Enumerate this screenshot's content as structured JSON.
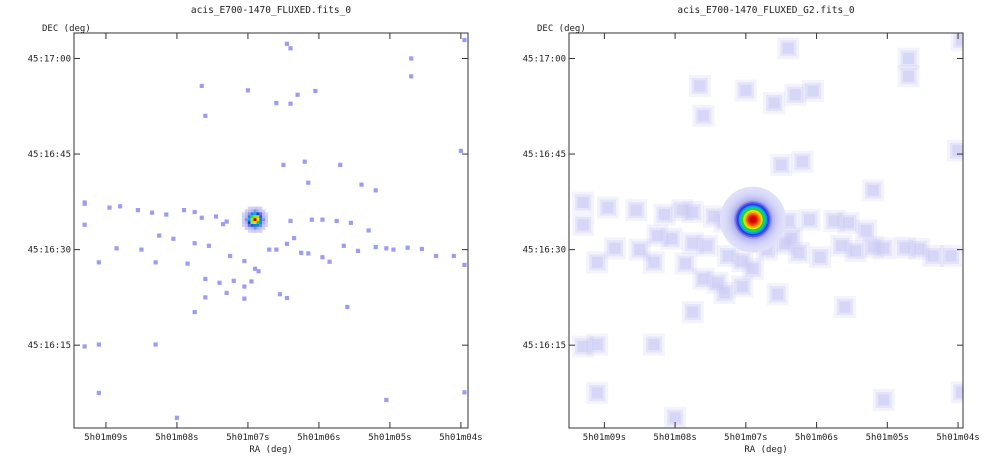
{
  "chart_data": [
    {
      "type": "heatmap",
      "title": "acis_E700-1470_FLUXED.fits_0",
      "xlabel": "RA (deg)",
      "ylabel": "DEC (deg)",
      "x_ticks": [
        "5h01m09s",
        "5h01m08s",
        "5h01m07s",
        "5h01m06s",
        "5h01m05s",
        "5h01m04s"
      ],
      "y_ticks": [
        "45:17:00",
        "45:16:45",
        "45:16:30",
        "45:16:15"
      ],
      "x_tick_values_sec": [
        9,
        8,
        7,
        6,
        5,
        4
      ],
      "y_tick_values_arcsec": [
        1020,
        1005,
        990,
        975
      ],
      "xlim_sec": [
        9.45,
        3.9
      ],
      "ylim_arcsec": [
        1024,
        962
      ],
      "grid": false,
      "colormap": "rainbow",
      "source_center": {
        "ra_sec": 6.9,
        "dec_arcsec": 994.7
      },
      "smoothing": "none",
      "events": [
        [
          9.3,
          997.4
        ],
        [
          9.3,
          997.2
        ],
        [
          8.95,
          996.6
        ],
        [
          8.8,
          996.8
        ],
        [
          8.55,
          996.2
        ],
        [
          8.35,
          995.8
        ],
        [
          8.15,
          995.5
        ],
        [
          7.9,
          996.2
        ],
        [
          7.75,
          995.9
        ],
        [
          7.65,
          995.0
        ],
        [
          7.45,
          995.2
        ],
        [
          7.3,
          994.4
        ],
        [
          7.35,
          994.0
        ],
        [
          6.4,
          994.5
        ],
        [
          6.1,
          994.7
        ],
        [
          5.95,
          994.7
        ],
        [
          5.75,
          994.5
        ],
        [
          5.55,
          994.2
        ],
        [
          5.3,
          993.0
        ],
        [
          5.05,
          990.2
        ],
        [
          4.95,
          990.0
        ],
        [
          4.75,
          990.3
        ],
        [
          4.55,
          990.1
        ],
        [
          4.35,
          989.0
        ],
        [
          4.1,
          989.0
        ],
        [
          3.95,
          987.6
        ],
        [
          9.3,
          993.9
        ],
        [
          8.85,
          990.2
        ],
        [
          8.5,
          990.0
        ],
        [
          8.25,
          992.2
        ],
        [
          8.05,
          991.7
        ],
        [
          7.75,
          991.0
        ],
        [
          7.55,
          990.6
        ],
        [
          7.25,
          989.0
        ],
        [
          7.05,
          988.2
        ],
        [
          6.9,
          987.0
        ],
        [
          6.85,
          986.6
        ],
        [
          6.7,
          990.0
        ],
        [
          6.6,
          990.0
        ],
        [
          6.45,
          990.9
        ],
        [
          6.35,
          991.8
        ],
        [
          6.25,
          989.5
        ],
        [
          6.15,
          989.4
        ],
        [
          5.95,
          988.8
        ],
        [
          5.85,
          988.1
        ],
        [
          5.65,
          990.6
        ],
        [
          5.45,
          989.8
        ],
        [
          5.2,
          990.4
        ],
        [
          9.1,
          988.0
        ],
        [
          8.3,
          988.0
        ],
        [
          7.85,
          987.8
        ],
        [
          7.6,
          985.4
        ],
        [
          7.4,
          984.8
        ],
        [
          7.2,
          985.1
        ],
        [
          7.05,
          984.2
        ],
        [
          6.95,
          985.0
        ],
        [
          6.55,
          983.0
        ],
        [
          6.45,
          982.4
        ],
        [
          5.6,
          981.0
        ],
        [
          7.6,
          982.5
        ],
        [
          7.75,
          980.2
        ],
        [
          7.05,
          982.3
        ],
        [
          7.3,
          983.2
        ],
        [
          8.3,
          975.1
        ],
        [
          9.1,
          967.5
        ],
        [
          8.0,
          963.6
        ],
        [
          5.05,
          966.4
        ],
        [
          3.95,
          967.6
        ],
        [
          6.45,
          1022.3
        ],
        [
          6.4,
          1021.6
        ],
        [
          3.95,
          1022.9
        ],
        [
          4.7,
          1020.0
        ],
        [
          7.0,
          1015.0
        ],
        [
          4.7,
          1017.2
        ],
        [
          7.65,
          1015.7
        ],
        [
          6.3,
          1014.3
        ],
        [
          6.05,
          1014.9
        ],
        [
          6.6,
          1013.0
        ],
        [
          6.4,
          1012.9
        ],
        [
          7.6,
          1011.0
        ],
        [
          4.0,
          1005.5
        ],
        [
          5.2,
          999.3
        ],
        [
          6.5,
          1003.3
        ],
        [
          6.2,
          1003.8
        ],
        [
          5.4,
          1000.2
        ],
        [
          6.15,
          1000.5
        ],
        [
          5.7,
          1003.3
        ],
        [
          9.1,
          975.1
        ],
        [
          9.3,
          974.8
        ]
      ]
    },
    {
      "type": "heatmap",
      "title": "acis_E700-1470_FLUXED_G2.fits_0",
      "xlabel": "RA (deg)",
      "ylabel": "DEC (deg)",
      "x_ticks": [
        "5h01m09s",
        "5h01m08s",
        "5h01m07s",
        "5h01m06s",
        "5h01m05s",
        "5h01m04s"
      ],
      "y_ticks": [
        "45:17:00",
        "45:16:45",
        "45:16:30",
        "45:16:15"
      ],
      "x_tick_values_sec": [
        9,
        8,
        7,
        6,
        5,
        4
      ],
      "y_tick_values_arcsec": [
        1020,
        1005,
        990,
        975
      ],
      "xlim_sec": [
        9.5,
        3.93
      ],
      "ylim_arcsec": [
        1024,
        962
      ],
      "grid": false,
      "colormap": "rainbow",
      "source_center": {
        "ra_sec": 6.9,
        "dec_arcsec": 994.7
      },
      "smoothing": "gaussian",
      "events": [
        [
          9.3,
          997.4
        ],
        [
          8.95,
          996.6
        ],
        [
          8.55,
          996.2
        ],
        [
          8.15,
          995.5
        ],
        [
          7.9,
          996.2
        ],
        [
          7.75,
          995.9
        ],
        [
          7.45,
          995.2
        ],
        [
          7.3,
          994.4
        ],
        [
          6.4,
          994.5
        ],
        [
          6.1,
          994.7
        ],
        [
          5.75,
          994.5
        ],
        [
          5.55,
          994.2
        ],
        [
          5.3,
          993.0
        ],
        [
          5.05,
          990.2
        ],
        [
          4.75,
          990.3
        ],
        [
          4.55,
          990.1
        ],
        [
          4.35,
          989.0
        ],
        [
          4.1,
          989.0
        ],
        [
          9.3,
          993.9
        ],
        [
          8.85,
          990.2
        ],
        [
          8.5,
          990.0
        ],
        [
          8.25,
          992.2
        ],
        [
          8.05,
          991.7
        ],
        [
          7.75,
          991.0
        ],
        [
          7.55,
          990.6
        ],
        [
          7.25,
          989.0
        ],
        [
          7.05,
          988.2
        ],
        [
          6.9,
          987.0
        ],
        [
          6.7,
          990.0
        ],
        [
          6.45,
          990.9
        ],
        [
          6.35,
          991.8
        ],
        [
          6.25,
          989.5
        ],
        [
          5.95,
          988.8
        ],
        [
          5.65,
          990.6
        ],
        [
          5.45,
          989.8
        ],
        [
          5.2,
          990.4
        ],
        [
          9.1,
          988.0
        ],
        [
          8.3,
          988.0
        ],
        [
          7.85,
          987.8
        ],
        [
          7.6,
          985.4
        ],
        [
          7.4,
          984.8
        ],
        [
          7.05,
          984.2
        ],
        [
          6.55,
          983.0
        ],
        [
          5.6,
          981.0
        ],
        [
          7.75,
          980.2
        ],
        [
          7.3,
          983.2
        ],
        [
          8.3,
          975.1
        ],
        [
          9.1,
          967.5
        ],
        [
          8.0,
          963.6
        ],
        [
          5.05,
          966.4
        ],
        [
          3.95,
          967.6
        ],
        [
          6.4,
          1021.6
        ],
        [
          3.95,
          1022.9
        ],
        [
          4.7,
          1020.0
        ],
        [
          7.0,
          1015.0
        ],
        [
          4.7,
          1017.2
        ],
        [
          7.65,
          1015.7
        ],
        [
          6.3,
          1014.3
        ],
        [
          6.05,
          1014.9
        ],
        [
          6.6,
          1013.0
        ],
        [
          7.6,
          1011.0
        ],
        [
          4.0,
          1005.5
        ],
        [
          5.2,
          999.3
        ],
        [
          6.5,
          1003.3
        ],
        [
          6.2,
          1003.8
        ],
        [
          9.1,
          975.1
        ],
        [
          9.3,
          974.8
        ]
      ]
    }
  ]
}
